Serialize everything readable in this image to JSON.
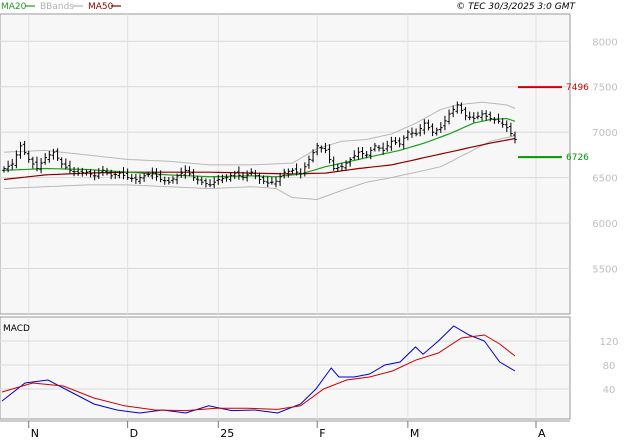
{
  "header": {
    "legend": [
      {
        "label": "MA20",
        "color": "#1aa01a"
      },
      {
        "label": "BBands",
        "color": "#b0b0b0"
      },
      {
        "label": "MA50",
        "color": "#8b0000"
      }
    ],
    "copyright": "© TEC 30/3/2025 3:0 GMT"
  },
  "chart_data": [
    {
      "type": "ohlc",
      "title": "",
      "indicators": [
        "MA20",
        "BBands",
        "MA50"
      ],
      "ylim": [
        5000,
        8300
      ],
      "yticks": [
        {
          "value": 8000,
          "label": "8000"
        },
        {
          "value": 7500,
          "label": "7500"
        },
        {
          "value": 7000,
          "label": "7000"
        },
        {
          "value": 6500,
          "label": "6500"
        },
        {
          "value": 6000,
          "label": "6000"
        },
        {
          "value": 5500,
          "label": "5500"
        }
      ],
      "x_ticks": [
        "N",
        "D",
        "25",
        "F",
        "M",
        "A"
      ],
      "levels": [
        {
          "value": 7496,
          "label": "7496",
          "color": "#cc0000"
        },
        {
          "value": 6726,
          "label": "6726",
          "color": "#009900"
        }
      ],
      "grid": true,
      "price_path": [
        [
          0,
          6600
        ],
        [
          2,
          6650
        ],
        [
          4,
          6850
        ],
        [
          6,
          6700
        ],
        [
          8,
          6600
        ],
        [
          10,
          6720
        ],
        [
          12,
          6780
        ],
        [
          14,
          6650
        ],
        [
          16,
          6580
        ],
        [
          18,
          6550
        ],
        [
          20,
          6560
        ],
        [
          22,
          6520
        ],
        [
          24,
          6580
        ],
        [
          26,
          6520
        ],
        [
          28,
          6550
        ],
        [
          30,
          6500
        ],
        [
          32,
          6480
        ],
        [
          34,
          6520
        ],
        [
          36,
          6550
        ],
        [
          38,
          6480
        ],
        [
          40,
          6450
        ],
        [
          42,
          6520
        ],
        [
          44,
          6580
        ],
        [
          46,
          6500
        ],
        [
          48,
          6450
        ],
        [
          50,
          6420
        ],
        [
          52,
          6480
        ],
        [
          54,
          6500
        ],
        [
          56,
          6550
        ],
        [
          58,
          6500
        ],
        [
          60,
          6560
        ],
        [
          62,
          6480
        ],
        [
          64,
          6440
        ],
        [
          66,
          6460
        ],
        [
          68,
          6560
        ],
        [
          70,
          6580
        ],
        [
          72,
          6540
        ],
        [
          74,
          6700
        ],
        [
          76,
          6850
        ],
        [
          78,
          6800
        ],
        [
          80,
          6600
        ],
        [
          82,
          6620
        ],
        [
          84,
          6700
        ],
        [
          86,
          6780
        ],
        [
          88,
          6750
        ],
        [
          90,
          6850
        ],
        [
          92,
          6800
        ],
        [
          94,
          6900
        ],
        [
          96,
          6870
        ],
        [
          98,
          7000
        ],
        [
          100,
          6980
        ],
        [
          102,
          7100
        ],
        [
          104,
          7000
        ],
        [
          106,
          7050
        ],
        [
          108,
          7200
        ],
        [
          110,
          7300
        ],
        [
          112,
          7180
        ],
        [
          114,
          7150
        ],
        [
          116,
          7200
        ],
        [
          118,
          7150
        ],
        [
          120,
          7120
        ],
        [
          122,
          7050
        ],
        [
          124,
          6920
        ]
      ],
      "ma20_path": [
        [
          0,
          6580
        ],
        [
          10,
          6600
        ],
        [
          20,
          6590
        ],
        [
          30,
          6560
        ],
        [
          40,
          6530
        ],
        [
          50,
          6510
        ],
        [
          60,
          6520
        ],
        [
          66,
          6510
        ],
        [
          72,
          6540
        ],
        [
          78,
          6620
        ],
        [
          84,
          6680
        ],
        [
          90,
          6740
        ],
        [
          96,
          6800
        ],
        [
          102,
          6880
        ],
        [
          108,
          6980
        ],
        [
          114,
          7100
        ],
        [
          118,
          7140
        ],
        [
          122,
          7150
        ],
        [
          124,
          7120
        ]
      ],
      "ma50_path": [
        [
          0,
          6480
        ],
        [
          10,
          6530
        ],
        [
          20,
          6550
        ],
        [
          30,
          6560
        ],
        [
          40,
          6560
        ],
        [
          50,
          6560
        ],
        [
          60,
          6550
        ],
        [
          70,
          6540
        ],
        [
          78,
          6550
        ],
        [
          86,
          6600
        ],
        [
          94,
          6640
        ],
        [
          100,
          6700
        ],
        [
          106,
          6760
        ],
        [
          112,
          6820
        ],
        [
          118,
          6880
        ],
        [
          124,
          6930
        ]
      ],
      "bb_upper_path": [
        [
          0,
          6780
        ],
        [
          10,
          6800
        ],
        [
          20,
          6750
        ],
        [
          30,
          6700
        ],
        [
          40,
          6680
        ],
        [
          50,
          6640
        ],
        [
          60,
          6640
        ],
        [
          70,
          6660
        ],
        [
          76,
          6820
        ],
        [
          82,
          6900
        ],
        [
          88,
          6920
        ],
        [
          94,
          6980
        ],
        [
          100,
          7100
        ],
        [
          106,
          7250
        ],
        [
          110,
          7300
        ],
        [
          116,
          7330
        ],
        [
          122,
          7300
        ],
        [
          124,
          7260
        ]
      ],
      "bb_lower_path": [
        [
          0,
          6380
        ],
        [
          10,
          6400
        ],
        [
          20,
          6420
        ],
        [
          30,
          6420
        ],
        [
          40,
          6400
        ],
        [
          50,
          6380
        ],
        [
          60,
          6400
        ],
        [
          66,
          6380
        ],
        [
          70,
          6280
        ],
        [
          76,
          6260
        ],
        [
          82,
          6360
        ],
        [
          88,
          6450
        ],
        [
          94,
          6500
        ],
        [
          100,
          6560
        ],
        [
          106,
          6620
        ],
        [
          112,
          6760
        ],
        [
          118,
          6900
        ],
        [
          124,
          6960
        ]
      ]
    },
    {
      "type": "line",
      "title": "MACD",
      "ylim": [
        -10,
        160
      ],
      "yticks": [
        {
          "value": 120,
          "label": "120"
        },
        {
          "value": 80,
          "label": "80"
        },
        {
          "value": 40,
          "label": "40"
        }
      ],
      "grid": true,
      "series": [
        {
          "color": "#0000cc",
          "points": [
            [
              0,
              20
            ],
            [
              6,
              50
            ],
            [
              12,
              55
            ],
            [
              18,
              35
            ],
            [
              24,
              15
            ],
            [
              30,
              5
            ],
            [
              36,
              0
            ],
            [
              42,
              5
            ],
            [
              48,
              0
            ],
            [
              54,
              12
            ],
            [
              60,
              4
            ],
            [
              66,
              5
            ],
            [
              72,
              0
            ],
            [
              78,
              15
            ],
            [
              82,
              40
            ],
            [
              86,
              75
            ],
            [
              88,
              60
            ],
            [
              92,
              60
            ],
            [
              96,
              65
            ],
            [
              100,
              80
            ],
            [
              104,
              85
            ],
            [
              108,
              110
            ],
            [
              110,
              98
            ],
            [
              114,
              120
            ],
            [
              118,
              145
            ],
            [
              122,
              130
            ],
            [
              126,
              120
            ],
            [
              130,
              85
            ],
            [
              134,
              70
            ]
          ]
        },
        {
          "color": "#cc0000",
          "points": [
            [
              0,
              35
            ],
            [
              8,
              50
            ],
            [
              16,
              45
            ],
            [
              24,
              25
            ],
            [
              32,
              12
            ],
            [
              40,
              5
            ],
            [
              48,
              4
            ],
            [
              56,
              8
            ],
            [
              64,
              8
            ],
            [
              72,
              6
            ],
            [
              78,
              12
            ],
            [
              84,
              40
            ],
            [
              90,
              55
            ],
            [
              96,
              60
            ],
            [
              102,
              70
            ],
            [
              108,
              88
            ],
            [
              114,
              100
            ],
            [
              120,
              125
            ],
            [
              126,
              130
            ],
            [
              130,
              115
            ],
            [
              134,
              95
            ]
          ]
        }
      ]
    }
  ]
}
